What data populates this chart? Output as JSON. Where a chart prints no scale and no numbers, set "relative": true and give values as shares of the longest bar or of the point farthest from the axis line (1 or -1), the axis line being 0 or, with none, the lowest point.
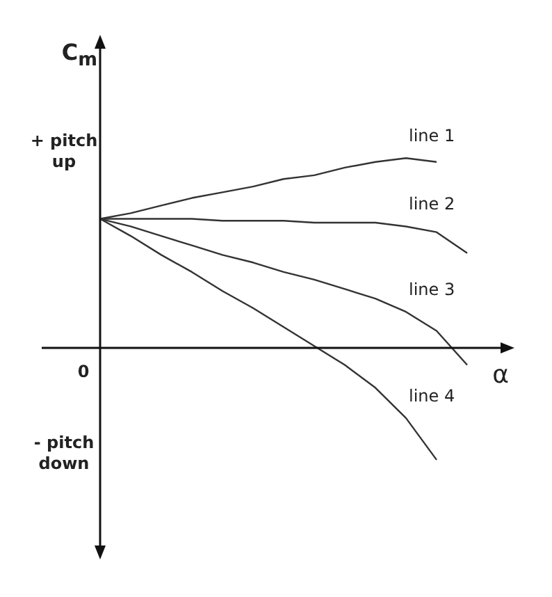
{
  "chart_data": {
    "type": "line",
    "relative": true,
    "xlabel": "α",
    "ylabel": "C$_{m}$",
    "annotations": [
      "+ pitch up",
      "- pitch down",
      "0"
    ],
    "categories": [
      null,
      null,
      null,
      null,
      null,
      null,
      null,
      null,
      null,
      null,
      null,
      null,
      null
    ],
    "series": [
      {
        "name": "line 1",
        "color": "#333333",
        "values": [
          0.68,
          0.71,
          0.75,
          0.79,
          0.82,
          0.85,
          0.89,
          0.91,
          0.95,
          0.98,
          1,
          0.98,
          null
        ]
      },
      {
        "name": "line 2",
        "color": "#333333",
        "values": [
          0.68,
          0.68,
          0.68,
          0.68,
          0.67,
          0.67,
          0.67,
          0.66,
          0.66,
          0.66,
          0.64,
          0.61,
          0.5
        ]
      },
      {
        "name": "line 3",
        "color": "#333333",
        "values": [
          0.68,
          0.64,
          0.59,
          0.54,
          0.49,
          0.45,
          0.4,
          0.36,
          0.31,
          0.26,
          0.19,
          0.09,
          -0.09
        ]
      },
      {
        "name": "line 4",
        "color": "#333333",
        "values": [
          0.68,
          0.59,
          0.49,
          0.4,
          0.3,
          0.21,
          0.11,
          0.01,
          -0.09,
          -0.21,
          -0.37,
          -0.59,
          null
        ]
      }
    ],
    "legend": false,
    "marker": "none",
    "line_style": "solid"
  }
}
